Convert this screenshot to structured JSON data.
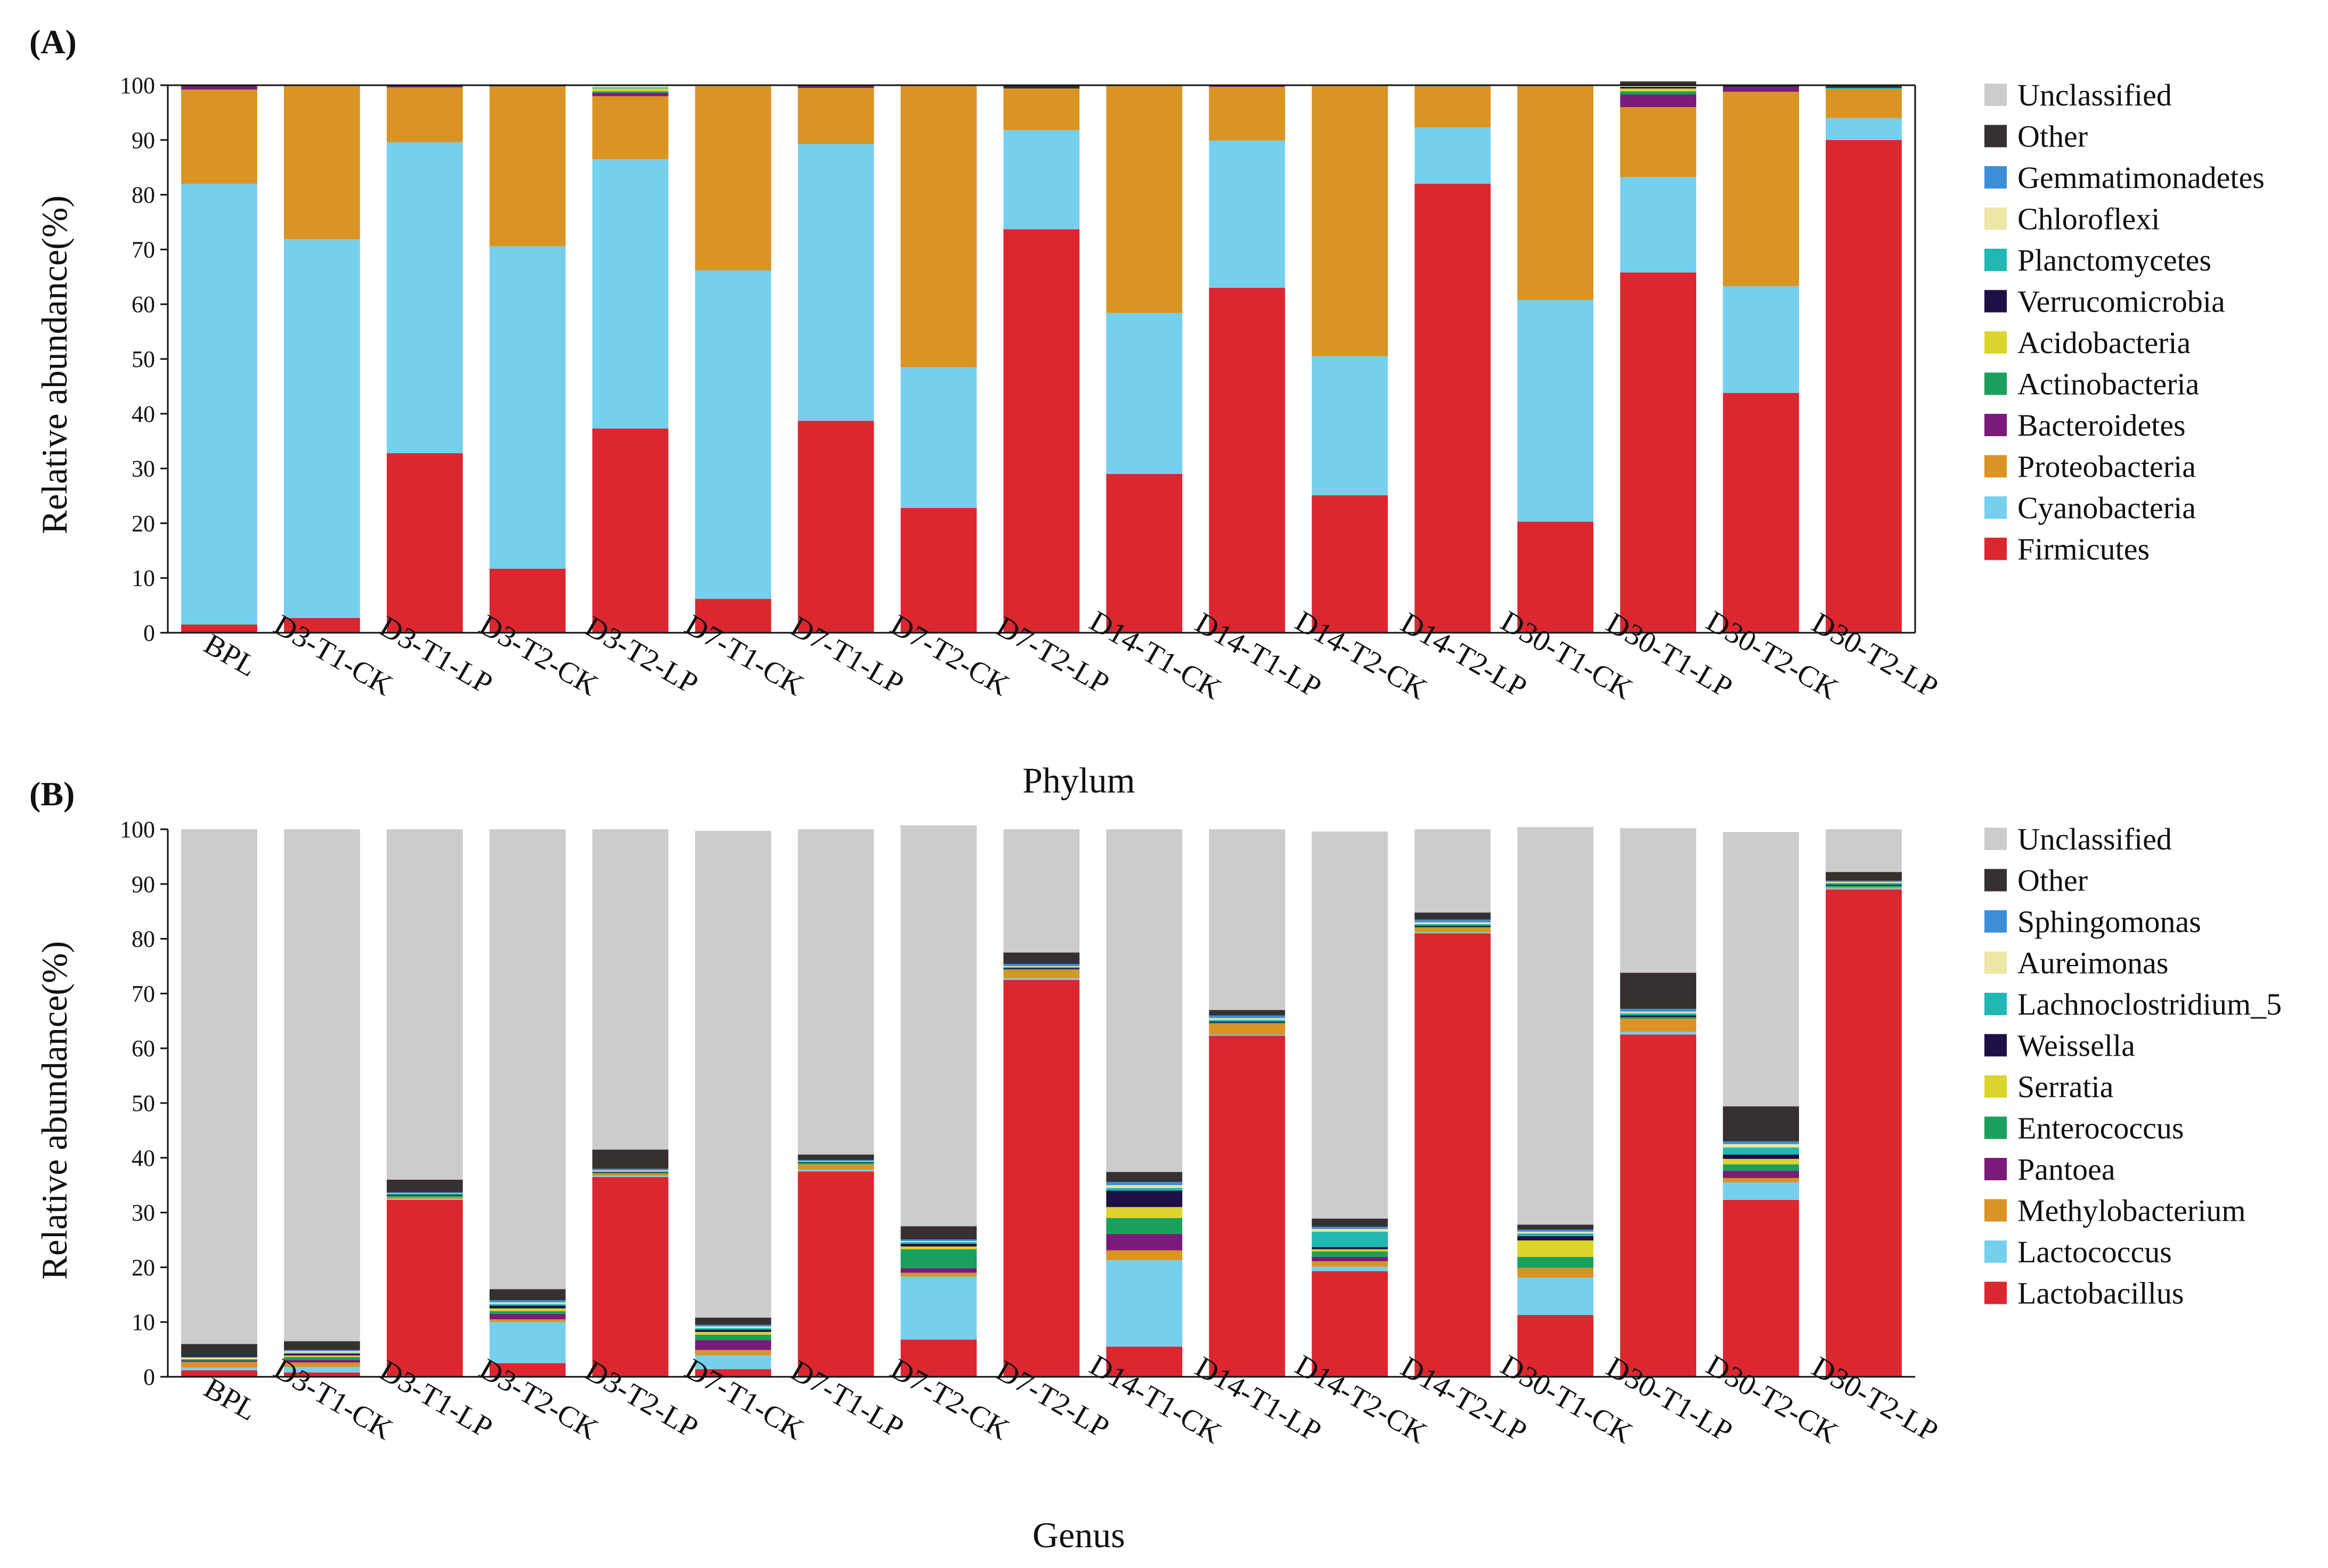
{
  "colors": {
    "Unclassified": "#cccccc",
    "Other": "#363030",
    "Gemmatimonadetes": "#3b8fd9",
    "Chloroflexi": "#ede6a6",
    "Planctomycetes": "#1fb8b3",
    "Verrucomicrobia": "#1e0f45",
    "Acidobacteria": "#dcd52c",
    "Actinobacteria": "#1aa05c",
    "Bacteroidetes": "#7b1a78",
    "Proteobacteria": "#d99423",
    "Cyanobacteria": "#75d0ee",
    "Firmicutes": "#dc2630",
    "Sphingomonas": "#3b8fd9",
    "Aureimonas": "#ede6a6",
    "Lachnoclostridium_5": "#1fb8b3",
    "Weissella": "#1e0f45",
    "Serratia": "#dcd52c",
    "Enterococcus": "#1aa05c",
    "Pantoea": "#7b1a78",
    "Methylobacterium": "#d99423",
    "Lactococcus": "#75d0ee",
    "Lactobacillus": "#dc2630"
  },
  "chart_data": [
    {
      "panel": "(A)",
      "type": "bar",
      "stacked": true,
      "xlabel": "Phylum",
      "ylabel": "Relative abundance(%)",
      "ylim": [
        0,
        100
      ],
      "yticks": [
        0,
        10,
        20,
        30,
        40,
        50,
        60,
        70,
        80,
        90,
        100
      ],
      "categories": [
        "BPL",
        "D3-T1-CK",
        "D3-T1-LP",
        "D3-T2-CK",
        "D3-T2-LP",
        "D7-T1-CK",
        "D7-T1-LP",
        "D7-T2-CK",
        "D7-T2-LP",
        "D14-T1-CK",
        "D14-T1-LP",
        "D14-T2-CK",
        "D14-T2-LP",
        "D30-T1-CK",
        "D30-T1-LP",
        "D30-T2-CK",
        "D30-T2-LP"
      ],
      "legend": [
        "Unclassified",
        "Other",
        "Gemmatimonadetes",
        "Chloroflexi",
        "Planctomycetes",
        "Verrucomicrobia",
        "Acidobacteria",
        "Actinobacteria",
        "Bacteroidetes",
        "Proteobacteria",
        "Cyanobacteria",
        "Firmicutes"
      ],
      "series": [
        {
          "name": "Firmicutes",
          "values": [
            1.5,
            2.7,
            32.8,
            11.7,
            37.3,
            6.2,
            38.7,
            22.8,
            73.7,
            29.0,
            63.0,
            25.1,
            82.0,
            20.3,
            65.8,
            43.8,
            90.0
          ]
        },
        {
          "name": "Cyanobacteria",
          "values": [
            80.5,
            69.2,
            56.8,
            58.9,
            49.2,
            60.0,
            50.6,
            25.7,
            18.1,
            29.4,
            26.9,
            25.4,
            10.3,
            40.5,
            17.4,
            19.5,
            4.0
          ]
        },
        {
          "name": "Proteobacteria",
          "values": [
            17.2,
            28.0,
            10.0,
            29.2,
            11.5,
            33.6,
            10.2,
            51.4,
            7.6,
            41.5,
            9.8,
            49.4,
            7.5,
            39.1,
            12.8,
            35.5,
            5.3
          ]
        },
        {
          "name": "Bacteroidetes",
          "values": [
            0.6,
            0,
            0.2,
            0,
            0.6,
            0,
            0.3,
            0,
            0,
            0,
            0.2,
            0,
            0,
            0,
            2.3,
            0.8,
            0
          ]
        },
        {
          "name": "Actinobacteria",
          "values": [
            0,
            0,
            0,
            0,
            0.3,
            0,
            0,
            0,
            0,
            0,
            0,
            0,
            0,
            0,
            0.6,
            0,
            0
          ]
        },
        {
          "name": "Acidobacteria",
          "values": [
            0,
            0,
            0,
            0,
            0.5,
            0.2,
            0,
            0,
            0,
            0,
            0,
            0,
            0,
            0,
            0.5,
            0,
            0
          ]
        },
        {
          "name": "Verrucomicrobia",
          "values": [
            0,
            0,
            0,
            0,
            0,
            0,
            0,
            0,
            0,
            0,
            0,
            0,
            0,
            0,
            0.3,
            0,
            0
          ]
        },
        {
          "name": "Planctomycetes",
          "values": [
            0,
            0,
            0,
            0,
            0.2,
            0,
            0,
            0,
            0,
            0,
            0,
            0,
            0.2,
            0,
            0,
            0,
            0.2
          ]
        },
        {
          "name": "Chloroflexi",
          "values": [
            0,
            0,
            0,
            0,
            0.3,
            0,
            0,
            0,
            0,
            0,
            0,
            0,
            0,
            0,
            0.2,
            0,
            0
          ]
        },
        {
          "name": "Gemmatimonadetes",
          "values": [
            0,
            0,
            0,
            0,
            0,
            0,
            0,
            0,
            0,
            0,
            0,
            0,
            0,
            0,
            0.2,
            0,
            0
          ]
        },
        {
          "name": "Other",
          "values": [
            0.2,
            0.1,
            0.2,
            0.2,
            0.1,
            0,
            0.2,
            0.1,
            0.6,
            0.1,
            0.1,
            0.1,
            0,
            0.1,
            0.6,
            0.4,
            0.5
          ]
        }
      ]
    },
    {
      "panel": "(B)",
      "type": "bar",
      "stacked": true,
      "xlabel": "Genus",
      "ylabel": "Relative abundance(%)",
      "ylim": [
        0,
        100
      ],
      "yticks": [
        0,
        10,
        20,
        30,
        40,
        50,
        60,
        70,
        80,
        90,
        100
      ],
      "categories": [
        "BPL",
        "D3-T1-CK",
        "D3-T1-LP",
        "D3-T2-CK",
        "D3-T2-LP",
        "D7-T1-CK",
        "D7-T1-LP",
        "D7-T2-CK",
        "D7-T2-LP",
        "D14-T1-CK",
        "D14-T1-LP",
        "D14-T2-CK",
        "D14-T2-LP",
        "D30-T1-CK",
        "D30-T1-LP",
        "D30-T2-CK",
        "D30-T2-LP"
      ],
      "legend": [
        "Unclassified",
        "Other",
        "Sphingomonas",
        "Aureimonas",
        "Lachnoclostridium_5",
        "Weissella",
        "Serratia",
        "Enterococcus",
        "Pantoea",
        "Methylobacterium",
        "Lactococcus",
        "Lactobacillus"
      ],
      "series": [
        {
          "name": "Lactobacillus",
          "values": [
            1.2,
            0.8,
            32.3,
            2.5,
            36.5,
            1.4,
            37.5,
            6.8,
            72.5,
            5.5,
            62.3,
            19.3,
            81.0,
            11.3,
            62.5,
            32.3,
            89.0
          ]
        },
        {
          "name": "Lactococcus",
          "values": [
            0.5,
            1.0,
            0.2,
            7.5,
            0.2,
            2.5,
            0.3,
            11.5,
            0.3,
            15.8,
            0.2,
            0.8,
            0.2,
            6.8,
            0.5,
            3.2,
            0.2
          ]
        },
        {
          "name": "Methylobacterium",
          "values": [
            1.0,
            0.8,
            0.3,
            0.5,
            0.4,
            1.0,
            1.0,
            0.7,
            1.5,
            1.8,
            2.0,
            1.0,
            0.8,
            1.8,
            2.4,
            0.8,
            0.3
          ]
        },
        {
          "name": "Pantoea",
          "values": [
            0.2,
            0.5,
            0,
            1.0,
            0,
            1.8,
            0,
            0.8,
            0,
            3.0,
            0,
            0.8,
            0,
            0,
            0,
            1.3,
            0
          ]
        },
        {
          "name": "Enterococcus",
          "values": [
            0.1,
            0.5,
            0.3,
            0.5,
            0.2,
            1.0,
            0.3,
            3.5,
            0.2,
            2.9,
            0.2,
            1.0,
            0.2,
            2.0,
            0.3,
            1.2,
            0.2
          ]
        },
        {
          "name": "Serratia",
          "values": [
            0,
            0.3,
            0,
            0.5,
            0,
            0.5,
            0,
            0.5,
            0,
            2.0,
            0,
            0.4,
            0,
            3.0,
            0,
            1.0,
            0
          ]
        },
        {
          "name": "Weissella",
          "values": [
            0.1,
            0.3,
            0.2,
            0.5,
            0.1,
            0.4,
            0.1,
            0.5,
            0.2,
            3.0,
            0.2,
            0.4,
            0.2,
            0.8,
            0.3,
            0.8,
            0.2
          ]
        },
        {
          "name": "Lachnoclostridium_5",
          "values": [
            0.1,
            0.2,
            0.1,
            0.3,
            0.1,
            0.3,
            0.1,
            0.3,
            0.1,
            0.5,
            0.3,
            2.8,
            0.3,
            0.5,
            0.4,
            1.3,
            0.3
          ]
        },
        {
          "name": "Aureimonas",
          "values": [
            0.3,
            0.3,
            0.1,
            0.3,
            0.2,
            0.3,
            0.1,
            0.2,
            0.2,
            0.5,
            0.3,
            0.5,
            0.3,
            0.3,
            0.3,
            0.6,
            0.2
          ]
        },
        {
          "name": "Sphingomonas",
          "values": [
            0.1,
            0.2,
            0.2,
            0.4,
            0.3,
            0.3,
            0.2,
            0.3,
            0.4,
            0.6,
            0.5,
            0.4,
            0.5,
            0.4,
            0.5,
            0.5,
            0.2
          ]
        },
        {
          "name": "Other",
          "values": [
            2.4,
            1.6,
            2.3,
            2.0,
            3.5,
            1.3,
            1.0,
            2.4,
            2.1,
            1.8,
            1.0,
            1.5,
            1.3,
            0.9,
            6.6,
            6.4,
            1.6
          ]
        },
        {
          "name": "Unclassified",
          "values": [
            94.0,
            93.5,
            64.0,
            84.0,
            58.5,
            88.9,
            59.4,
            73.2,
            22.5,
            62.6,
            33.0,
            70.7,
            15.2,
            72.6,
            26.4,
            50.1,
            7.8
          ]
        }
      ]
    }
  ]
}
